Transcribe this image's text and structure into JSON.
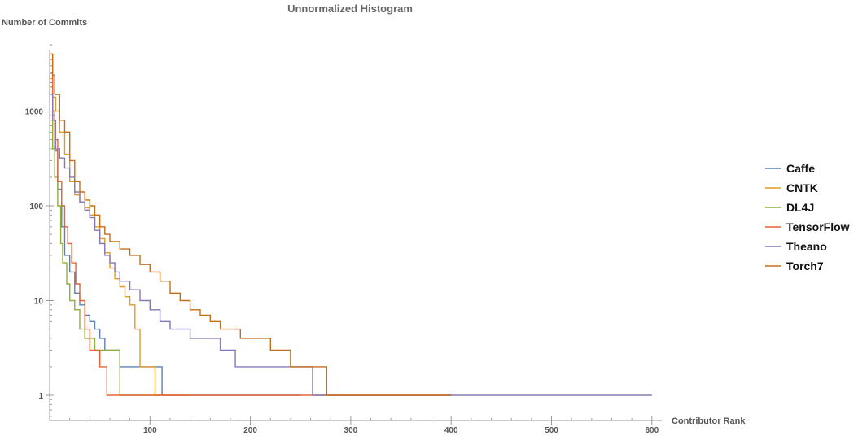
{
  "chart_data": {
    "type": "line",
    "title": "Unnormalized Histogram",
    "xlabel": "Contributor Rank",
    "ylabel": "Number of Commits",
    "xlim": [
      0,
      610
    ],
    "ylim": [
      0.5,
      5000
    ],
    "yscale": "log",
    "x_ticks": [
      100,
      200,
      300,
      400,
      500,
      600
    ],
    "x_tick_labels": [
      "100",
      "200",
      "300",
      "400",
      "500",
      "600"
    ],
    "y_ticks": [
      1,
      10,
      100,
      1000
    ],
    "y_tick_labels": [
      "1",
      "10",
      "100",
      "1000"
    ],
    "grid": false,
    "legend_position": "right",
    "series": [
      {
        "name": "Caffe",
        "color": "#5e81b5",
        "points": [
          [
            1,
            2500
          ],
          [
            3,
            900
          ],
          [
            5,
            380
          ],
          [
            8,
            150
          ],
          [
            12,
            60
          ],
          [
            15,
            30
          ],
          [
            20,
            20
          ],
          [
            25,
            12
          ],
          [
            30,
            9
          ],
          [
            35,
            7
          ],
          [
            40,
            6
          ],
          [
            45,
            5
          ],
          [
            50,
            4
          ],
          [
            55,
            3
          ],
          [
            70,
            2
          ],
          [
            112,
            1
          ],
          [
            250,
            1
          ]
        ]
      },
      {
        "name": "CNTK",
        "color": "#e19c24",
        "points": [
          [
            1,
            2200
          ],
          [
            3,
            1400
          ],
          [
            6,
            1000
          ],
          [
            10,
            600
          ],
          [
            15,
            350
          ],
          [
            20,
            180
          ],
          [
            25,
            130
          ],
          [
            30,
            110
          ],
          [
            35,
            95
          ],
          [
            40,
            80
          ],
          [
            45,
            60
          ],
          [
            50,
            45
          ],
          [
            55,
            32
          ],
          [
            60,
            22
          ],
          [
            65,
            17
          ],
          [
            70,
            14
          ],
          [
            75,
            11
          ],
          [
            80,
            9
          ],
          [
            85,
            5
          ],
          [
            90,
            2
          ],
          [
            105,
            1
          ],
          [
            140,
            1
          ]
        ]
      },
      {
        "name": "DL4J",
        "color": "#8fb032",
        "points": [
          [
            1,
            1800
          ],
          [
            3,
            400
          ],
          [
            5,
            200
          ],
          [
            8,
            100
          ],
          [
            11,
            40
          ],
          [
            13,
            25
          ],
          [
            17,
            15
          ],
          [
            20,
            10
          ],
          [
            25,
            8
          ],
          [
            30,
            5
          ],
          [
            35,
            4
          ],
          [
            40,
            4
          ],
          [
            45,
            3
          ],
          [
            55,
            3
          ],
          [
            70,
            1
          ],
          [
            110,
            1
          ]
        ]
      },
      {
        "name": "TensorFlow",
        "color": "#eb6235",
        "points": [
          [
            1,
            3500
          ],
          [
            3,
            1000
          ],
          [
            5,
            500
          ],
          [
            8,
            180
          ],
          [
            12,
            100
          ],
          [
            15,
            60
          ],
          [
            18,
            40
          ],
          [
            22,
            25
          ],
          [
            26,
            15
          ],
          [
            30,
            10
          ],
          [
            35,
            5
          ],
          [
            40,
            3
          ],
          [
            50,
            2
          ],
          [
            57,
            1
          ],
          [
            400,
            1
          ]
        ]
      },
      {
        "name": "Theano",
        "color": "#8778b3",
        "points": [
          [
            1,
            1500
          ],
          [
            3,
            800
          ],
          [
            6,
            400
          ],
          [
            10,
            320
          ],
          [
            15,
            250
          ],
          [
            20,
            200
          ],
          [
            25,
            140
          ],
          [
            30,
            110
          ],
          [
            35,
            90
          ],
          [
            40,
            75
          ],
          [
            45,
            55
          ],
          [
            50,
            40
          ],
          [
            55,
            30
          ],
          [
            60,
            25
          ],
          [
            65,
            20
          ],
          [
            70,
            16
          ],
          [
            80,
            13
          ],
          [
            90,
            10
          ],
          [
            100,
            8
          ],
          [
            110,
            6
          ],
          [
            120,
            5
          ],
          [
            130,
            5
          ],
          [
            140,
            4
          ],
          [
            150,
            4
          ],
          [
            170,
            3
          ],
          [
            185,
            2
          ],
          [
            260,
            2
          ],
          [
            262,
            1
          ],
          [
            600,
            1
          ]
        ]
      },
      {
        "name": "Torch7",
        "color": "#c56e1a",
        "points": [
          [
            1,
            4000
          ],
          [
            3,
            2400
          ],
          [
            5,
            1500
          ],
          [
            10,
            800
          ],
          [
            15,
            600
          ],
          [
            20,
            300
          ],
          [
            25,
            180
          ],
          [
            30,
            140
          ],
          [
            35,
            115
          ],
          [
            40,
            100
          ],
          [
            45,
            80
          ],
          [
            50,
            60
          ],
          [
            55,
            50
          ],
          [
            60,
            42
          ],
          [
            70,
            35
          ],
          [
            80,
            30
          ],
          [
            90,
            24
          ],
          [
            100,
            20
          ],
          [
            110,
            16
          ],
          [
            120,
            12
          ],
          [
            130,
            10
          ],
          [
            140,
            8
          ],
          [
            150,
            7
          ],
          [
            160,
            6
          ],
          [
            170,
            5
          ],
          [
            180,
            5
          ],
          [
            190,
            4
          ],
          [
            200,
            4
          ],
          [
            220,
            3
          ],
          [
            230,
            3
          ],
          [
            240,
            2
          ],
          [
            270,
            2
          ],
          [
            276,
            1
          ],
          [
            400,
            1
          ]
        ]
      }
    ]
  }
}
